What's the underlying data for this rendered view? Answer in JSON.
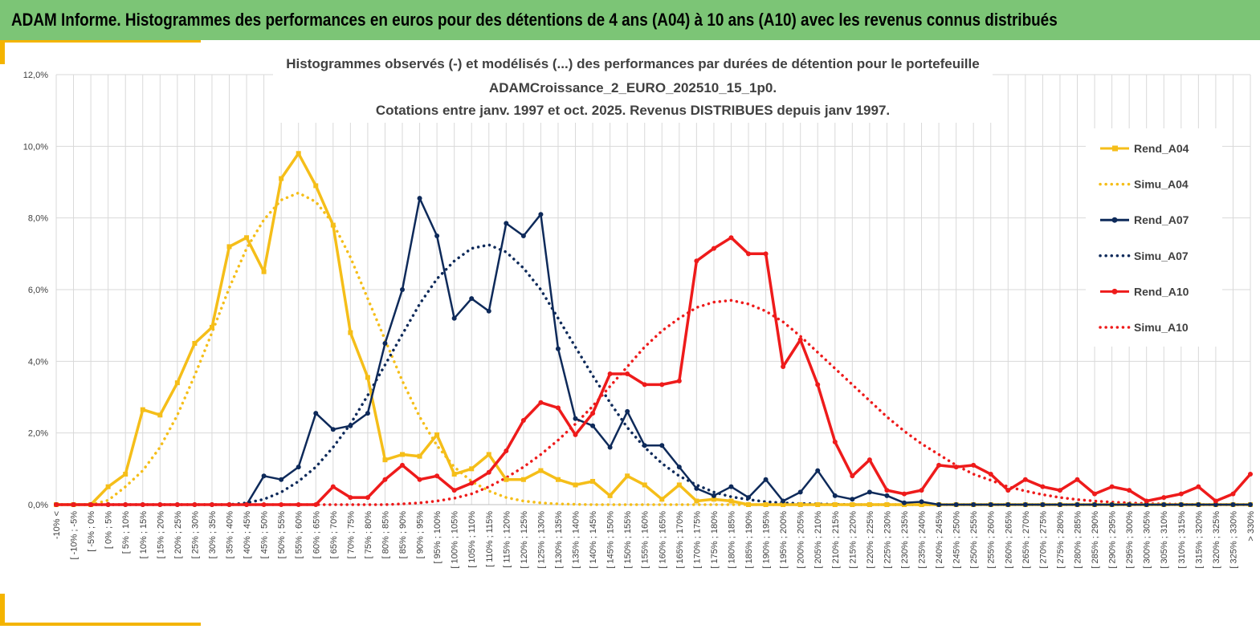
{
  "header": {
    "title": "ADAM Informe. Histogrammes des performances en euros pour des détentions de 4 ans (A04) à 10 ans (A10) avec les revenus connus distribués"
  },
  "colors": {
    "header_bg": "#7cc576",
    "frame": "#f4b400",
    "a04": "#f5be19",
    "a07": "#0e2a5a",
    "a10": "#ee1b1b",
    "grid": "#d9d9d9"
  },
  "chart_data": {
    "type": "line",
    "title": [
      "Histogrammes observés (-) et modélisés (...) des performances par durées de détention pour le portefeuille",
      "ADAMCroissance_2_EURO_202510_15_1p0.",
      "Cotations entre janv. 1997 et oct. 2025. Revenus DISTRIBUES depuis janv 1997."
    ],
    "xlabel": "",
    "ylabel": "",
    "ylim": [
      0,
      12
    ],
    "y_ticks": [
      "0,0%",
      "2,0%",
      "4,0%",
      "6,0%",
      "8,0%",
      "10,0%",
      "12,0%"
    ],
    "categories": [
      "-10% <",
      "[ -10% ; -5%",
      "[ -5% ; 0%",
      "[ 0% ; 5%",
      "[ 5% ; 10%",
      "[ 10% ; 15%",
      "[ 15% ; 20%",
      "[ 20% ; 25%",
      "[ 25% ; 30%",
      "[ 30% ; 35%",
      "[ 35% ; 40%",
      "[ 40% ; 45%",
      "[ 45% ; 50%",
      "[ 50% ; 55%",
      "[ 55% ; 60%",
      "[ 60% ; 65%",
      "[ 65% ; 70%",
      "[ 70% ; 75%",
      "[ 75% ; 80%",
      "[ 80% ; 85%",
      "[ 85% ; 90%",
      "[ 90% ; 95%",
      "[ 95% ; 100%",
      "[ 100% ; 105%",
      "[ 105% ; 110%",
      "[ 110% ; 115%",
      "[ 115% ; 120%",
      "[ 120% ; 125%",
      "[ 125% ; 130%",
      "[ 130% ; 135%",
      "[ 135% ; 140%",
      "[ 140% ; 145%",
      "[ 145% ; 150%",
      "[ 150% ; 155%",
      "[ 155% ; 160%",
      "[ 160% ; 165%",
      "[ 165% ; 170%",
      "[ 170% ; 175%",
      "[ 175% ; 180%",
      "[ 180% ; 185%",
      "[ 185% ; 190%",
      "[ 190% ; 195%",
      "[ 195% ; 200%",
      "[ 200% ; 205%",
      "[ 205% ; 210%",
      "[ 210% ; 215%",
      "[ 215% ; 220%",
      "[ 220% ; 225%",
      "[ 225% ; 230%",
      "[ 230% ; 235%",
      "[ 235% ; 240%",
      "[ 240% ; 245%",
      "[ 245% ; 250%",
      "[ 250% ; 255%",
      "[ 255% ; 260%",
      "[ 260% ; 265%",
      "[ 265% ; 270%",
      "[ 270% ; 275%",
      "[ 275% ; 280%",
      "[ 280% ; 285%",
      "[ 285% ; 290%",
      "[ 290% ; 295%",
      "[ 295% ; 300%",
      "[ 300% ; 305%",
      "[ 305% ; 310%",
      "[ 310% ; 315%",
      "[ 315% ; 320%",
      "[ 320% ; 325%",
      "[ 325% ; 330%",
      "> 330%"
    ],
    "series": [
      {
        "name": "Rend_A04",
        "style": "solid",
        "color": "#f5be19",
        "marker": "square",
        "values": [
          0,
          0,
          0,
          0.5,
          0.85,
          2.65,
          2.5,
          3.4,
          4.5,
          4.95,
          7.2,
          7.45,
          6.5,
          9.1,
          9.8,
          8.9,
          7.8,
          4.8,
          3.55,
          1.25,
          1.4,
          1.35,
          1.95,
          0.85,
          1.0,
          1.4,
          0.7,
          0.7,
          0.95,
          0.7,
          0.55,
          0.65,
          0.25,
          0.8,
          0.55,
          0.15,
          0.55,
          0.1,
          0.15,
          0.1,
          0,
          0,
          0,
          0,
          0,
          0,
          0,
          0,
          0,
          0,
          0,
          0,
          0,
          0,
          0,
          0,
          0,
          0,
          0,
          0,
          0,
          0,
          0,
          0,
          0,
          0,
          0,
          0,
          0,
          0
        ]
      },
      {
        "name": "Simu_A04",
        "style": "dotted",
        "color": "#f5be19",
        "marker": "none",
        "values": [
          0,
          0,
          0,
          0.12,
          0.5,
          0.95,
          1.6,
          2.5,
          3.6,
          4.8,
          6.05,
          7.15,
          7.95,
          8.5,
          8.7,
          8.45,
          7.85,
          6.9,
          5.75,
          4.6,
          3.45,
          2.45,
          1.65,
          1.05,
          0.65,
          0.38,
          0.2,
          0.1,
          0.05,
          0.02,
          0.01,
          0,
          0,
          0,
          0,
          0,
          0,
          0,
          0,
          0,
          0,
          0,
          0,
          0,
          0,
          0,
          0,
          0,
          0,
          0,
          0,
          0,
          0,
          0,
          0,
          0,
          0,
          0,
          0,
          0,
          0,
          0,
          0,
          0,
          0,
          0,
          0,
          0,
          0,
          0
        ]
      },
      {
        "name": "Rend_A07",
        "style": "solid",
        "color": "#0e2a5a",
        "marker": "circle",
        "values": [
          0,
          0,
          0,
          0,
          0,
          0,
          0,
          0,
          0,
          0,
          0,
          0,
          0.8,
          0.7,
          1.05,
          2.55,
          2.1,
          2.2,
          2.55,
          4.5,
          6.0,
          8.55,
          7.5,
          5.2,
          5.75,
          5.4,
          7.85,
          7.5,
          8.1,
          4.35,
          2.4,
          2.2,
          1.6,
          2.6,
          1.65,
          1.65,
          1.05,
          0.45,
          0.25,
          0.5,
          0.2,
          0.7,
          0.1,
          0.35,
          0.95,
          0.25,
          0.15,
          0.35,
          0.25,
          0.05,
          0.08,
          0,
          0,
          0,
          0,
          0,
          0,
          0,
          0,
          0,
          0,
          0,
          0,
          0,
          0,
          0,
          0,
          0,
          0,
          0
        ]
      },
      {
        "name": "Simu_A07",
        "style": "dotted",
        "color": "#0e2a5a",
        "marker": "none",
        "values": [
          0,
          0,
          0,
          0,
          0,
          0,
          0,
          0,
          0,
          0,
          0,
          0.05,
          0.15,
          0.35,
          0.65,
          1.05,
          1.6,
          2.25,
          3.05,
          3.9,
          4.75,
          5.6,
          6.3,
          6.8,
          7.15,
          7.25,
          7.05,
          6.6,
          6.0,
          5.2,
          4.4,
          3.6,
          2.85,
          2.15,
          1.6,
          1.15,
          0.8,
          0.55,
          0.35,
          0.22,
          0.14,
          0.08,
          0.05,
          0.03,
          0.02,
          0.01,
          0,
          0,
          0,
          0,
          0,
          0,
          0,
          0,
          0,
          0,
          0,
          0,
          0,
          0,
          0,
          0,
          0,
          0,
          0,
          0,
          0,
          0,
          0,
          0
        ]
      },
      {
        "name": "Rend_A10",
        "style": "solid",
        "color": "#ee1b1b",
        "marker": "circle",
        "values": [
          0,
          0,
          0,
          0,
          0,
          0,
          0,
          0,
          0,
          0,
          0,
          0,
          0,
          0,
          0,
          0,
          0.5,
          0.2,
          0.2,
          0.7,
          1.1,
          0.7,
          0.8,
          0.4,
          0.6,
          0.9,
          1.5,
          2.35,
          2.85,
          2.7,
          1.95,
          2.55,
          3.65,
          3.65,
          3.35,
          3.35,
          3.45,
          6.8,
          7.15,
          7.45,
          7.0,
          7.0,
          3.85,
          4.6,
          3.35,
          1.75,
          0.8,
          1.25,
          0.4,
          0.3,
          0.4,
          1.1,
          1.05,
          1.1,
          0.85,
          0.4,
          0.7,
          0.5,
          0.4,
          0.7,
          0.3,
          0.5,
          0.4,
          0.1,
          0.2,
          0.3,
          0.5,
          0.1,
          0.3,
          0.85
        ]
      },
      {
        "name": "Simu_A10",
        "style": "dotted",
        "color": "#ee1b1b",
        "marker": "none",
        "values": [
          0,
          0,
          0,
          0,
          0,
          0,
          0,
          0,
          0,
          0,
          0,
          0,
          0,
          0,
          0,
          0,
          0,
          0,
          0,
          0,
          0.02,
          0.05,
          0.1,
          0.18,
          0.3,
          0.5,
          0.75,
          1.05,
          1.4,
          1.8,
          2.25,
          2.75,
          3.3,
          3.85,
          4.4,
          4.85,
          5.2,
          5.5,
          5.65,
          5.7,
          5.6,
          5.4,
          5.1,
          4.7,
          4.25,
          3.8,
          3.35,
          2.9,
          2.45,
          2.05,
          1.7,
          1.4,
          1.1,
          0.85,
          0.68,
          0.5,
          0.38,
          0.28,
          0.2,
          0.14,
          0.1,
          0.07,
          0.05,
          0.03,
          0.02,
          0.01,
          0,
          0,
          0,
          0
        ]
      }
    ],
    "legend_position": "right",
    "grid": true
  }
}
